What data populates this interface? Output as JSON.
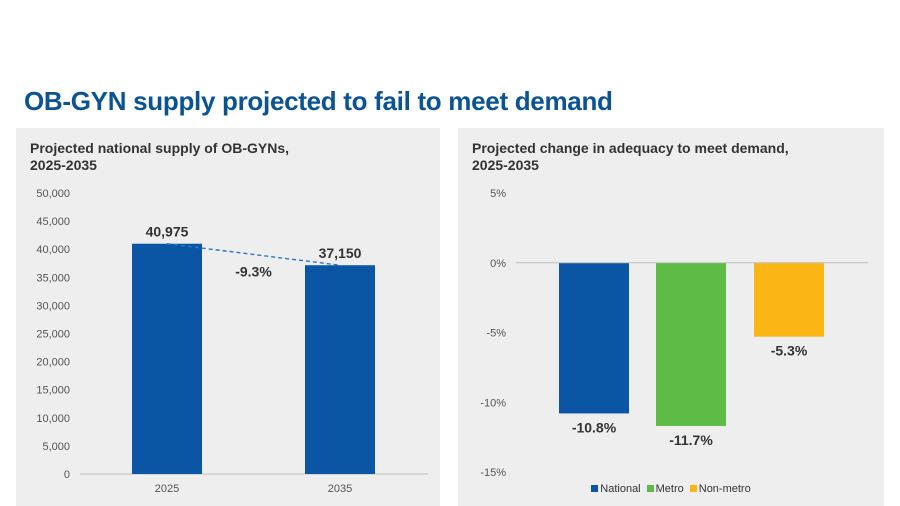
{
  "title": "OB-GYN supply projected to fail to meet demand",
  "chart_data": [
    {
      "type": "bar",
      "title": "Projected national supply of OB-GYNs, 2025-2035",
      "title_lines": [
        "Projected national supply of OB-GYNs,",
        "2025-2035"
      ],
      "categories": [
        "2025",
        "2035"
      ],
      "values": [
        40975,
        37150
      ],
      "value_labels": [
        "40,975",
        "37,150"
      ],
      "ylim": [
        0,
        50000
      ],
      "yticks": [
        0,
        5000,
        10000,
        15000,
        20000,
        25000,
        30000,
        35000,
        40000,
        45000,
        50000
      ],
      "ytick_labels": [
        "0",
        "5,000",
        "10,000",
        "15,000",
        "20,000",
        "25,000",
        "30,000",
        "35,000",
        "40,000",
        "45,000",
        "50,000"
      ],
      "annotation": "-9.3%",
      "xlabel": "",
      "ylabel": "",
      "color": "#0b56a4",
      "trend_color": "#2e75c8"
    },
    {
      "type": "bar",
      "title": "Projected change in adequacy to meet demand, 2025-2035",
      "title_lines": [
        "Projected change in adequacy to meet demand,",
        "2025-2035"
      ],
      "series": [
        {
          "name": "National",
          "value": -10.8,
          "label": "-10.8%",
          "color": "#0b56a4"
        },
        {
          "name": "Metro",
          "value": -11.7,
          "label": "-11.7%",
          "color": "#5dbb46"
        },
        {
          "name": "Non-metro",
          "value": -5.3,
          "label": "-5.3%",
          "color": "#fbb615"
        }
      ],
      "ylim": [
        -15,
        5
      ],
      "yticks": [
        5,
        0,
        -5,
        -10,
        -15
      ],
      "ytick_labels": [
        "5%",
        "0%",
        "-5%",
        "-10%",
        "-15%"
      ],
      "legend_position": "bottom",
      "xlabel": "",
      "ylabel": ""
    }
  ]
}
